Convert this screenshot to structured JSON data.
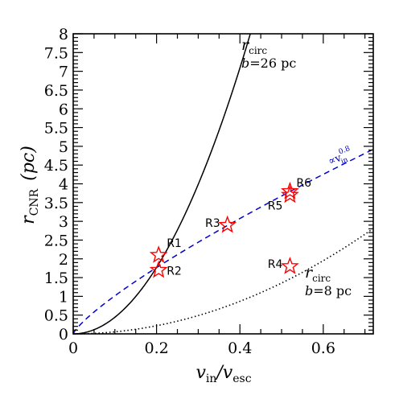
{
  "chart_data": {
    "type": "scatter",
    "x_axis": {
      "label_main": "v",
      "label_sub_1": "in",
      "label_slash": "/",
      "label_main_2": "v",
      "label_sub_2": "esc",
      "range": [
        0,
        0.72
      ],
      "ticks": [
        0,
        0.2,
        0.4,
        0.6
      ],
      "tick_labels": [
        "0",
        "0.2",
        "0.4",
        "0.6"
      ]
    },
    "y_axis": {
      "label_main": "r",
      "label_sub": "CNR",
      "label_unit": "(pc)",
      "range": [
        0,
        8
      ],
      "ticks": [
        0,
        0.5,
        1,
        1.5,
        2,
        2.5,
        3,
        3.5,
        4,
        4.5,
        5,
        5.5,
        6,
        6.5,
        7,
        7.5,
        8
      ],
      "tick_labels": [
        "0",
        "0.5",
        "1",
        "1.5",
        "2",
        "2.5",
        "3",
        "3.5",
        "4",
        "4.5",
        "5",
        "5.5",
        "6",
        "6.5",
        "7",
        "7.5",
        "8"
      ]
    },
    "points": [
      {
        "label": "R1",
        "x": 0.205,
        "y": 2.1
      },
      {
        "label": "R2",
        "x": 0.205,
        "y": 1.7
      },
      {
        "label": "R3",
        "x": 0.37,
        "y": 2.9
      },
      {
        "label": "R4",
        "x": 0.52,
        "y": 1.8
      },
      {
        "label": "R5",
        "x": 0.52,
        "y": 3.7
      },
      {
        "label": "R6",
        "x": 0.52,
        "y": 3.8
      }
    ],
    "curves": [
      {
        "name": "r_circ b=26 pc",
        "style": "solid",
        "color": "#000000",
        "coef": 44.3,
        "exponent": 2,
        "x_max": 0.72
      },
      {
        "name": "fit",
        "style": "dashed",
        "color": "#0000cc",
        "coef": 6.4,
        "exponent": 0.8,
        "x_max": 0.72
      },
      {
        "name": "r_circ b=8 pc",
        "style": "dotted",
        "color": "#000000",
        "coef": 5.42,
        "exponent": 2,
        "x_max": 0.72
      }
    ],
    "point_style": {
      "shape": "star",
      "stroke": "#ff0000",
      "fill": "none"
    }
  },
  "annotations": {
    "top_curve": {
      "r": "r",
      "sub": "circ",
      "b_text": "b",
      "b_value": "=26  pc"
    },
    "bottom_curve": {
      "r": "r",
      "sub": "circ",
      "b_text": "b",
      "b_value": "=8  pc"
    },
    "fit_curve": {
      "prefix": "∝v",
      "exponent": "0.8",
      "sub": "in"
    }
  }
}
